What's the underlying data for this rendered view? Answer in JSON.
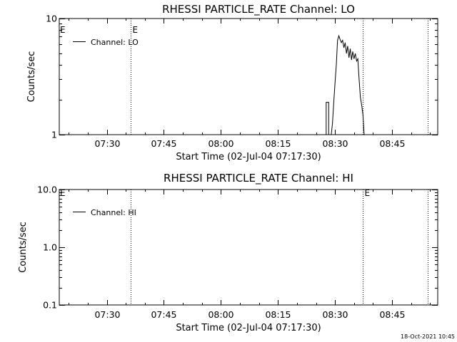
{
  "footer": {
    "timestamp": "18-Oct-2021 10:45"
  },
  "chart_data": [
    {
      "type": "line",
      "title": "RHESSI PARTICLE_RATE Channel: LO",
      "xlabel": "Start Time (02-Jul-04 07:17:30)",
      "ylabel": "Counts/sec",
      "xlim": [
        "07:17:30",
        "08:57:00"
      ],
      "ylim": [
        1,
        10
      ],
      "yscale": "log",
      "grid": false,
      "legend_position": "top-left",
      "x_ticks": [
        "07:30",
        "07:45",
        "08:00",
        "08:15",
        "08:30",
        "08:45"
      ],
      "y_ticks": [
        "1",
        "10"
      ],
      "event_markers": [
        {
          "time": "07:36:20",
          "label": "E"
        },
        {
          "time": "08:37:20",
          "label": ""
        },
        {
          "time": "08:54:20",
          "label": ""
        }
      ],
      "edge_marker_label": "E",
      "series": [
        {
          "name": "Channel: LO",
          "points": [
            [
              "07:17:30",
              1.0
            ],
            [
              "08:27:40",
              1.0
            ],
            [
              "08:27:40",
              1.9
            ],
            [
              "08:28:20",
              1.9
            ],
            [
              "08:28:20",
              1.0
            ],
            [
              "08:29:00",
              1.0
            ],
            [
              "08:29:20",
              1.25
            ],
            [
              "08:29:40",
              1.9
            ],
            [
              "08:30:00",
              2.8
            ],
            [
              "08:30:20",
              4.0
            ],
            [
              "08:30:40",
              6.5
            ],
            [
              "08:31:00",
              7.1
            ],
            [
              "08:31:20",
              6.6
            ],
            [
              "08:31:40",
              6.2
            ],
            [
              "08:32:00",
              6.5
            ],
            [
              "08:32:20",
              5.6
            ],
            [
              "08:32:40",
              6.2
            ],
            [
              "08:33:00",
              5.0
            ],
            [
              "08:33:20",
              5.8
            ],
            [
              "08:33:40",
              4.6
            ],
            [
              "08:34:00",
              5.5
            ],
            [
              "08:34:20",
              4.4
            ],
            [
              "08:34:40",
              5.2
            ],
            [
              "08:35:00",
              4.5
            ],
            [
              "08:35:20",
              5.0
            ],
            [
              "08:35:40",
              4.3
            ],
            [
              "08:36:00",
              4.5
            ],
            [
              "08:36:20",
              3.0
            ],
            [
              "08:36:40",
              2.1
            ],
            [
              "08:37:00",
              1.8
            ],
            [
              "08:37:20",
              1.5
            ],
            [
              "08:37:40",
              1.0
            ],
            [
              "08:57:00",
              1.0
            ]
          ]
        }
      ]
    },
    {
      "type": "line",
      "title": "RHESSI PARTICLE_RATE Channel: HI",
      "xlabel": "Start Time (02-Jul-04 07:17:30)",
      "ylabel": "Counts/sec",
      "xlim": [
        "07:17:30",
        "08:57:00"
      ],
      "ylim": [
        0.1,
        10
      ],
      "yscale": "log",
      "grid": false,
      "legend_position": "top-left",
      "x_ticks": [
        "07:30",
        "07:45",
        "08:00",
        "08:15",
        "08:30",
        "08:45"
      ],
      "y_ticks": [
        "0.1",
        "1.0",
        "10.0"
      ],
      "event_markers": [
        {
          "time": "07:36:20",
          "label": ""
        },
        {
          "time": "08:37:20",
          "label": "E"
        },
        {
          "time": "08:54:20",
          "label": ""
        }
      ],
      "edge_marker_label": "E",
      "series": [
        {
          "name": "Channel: HI",
          "points": []
        }
      ]
    }
  ]
}
